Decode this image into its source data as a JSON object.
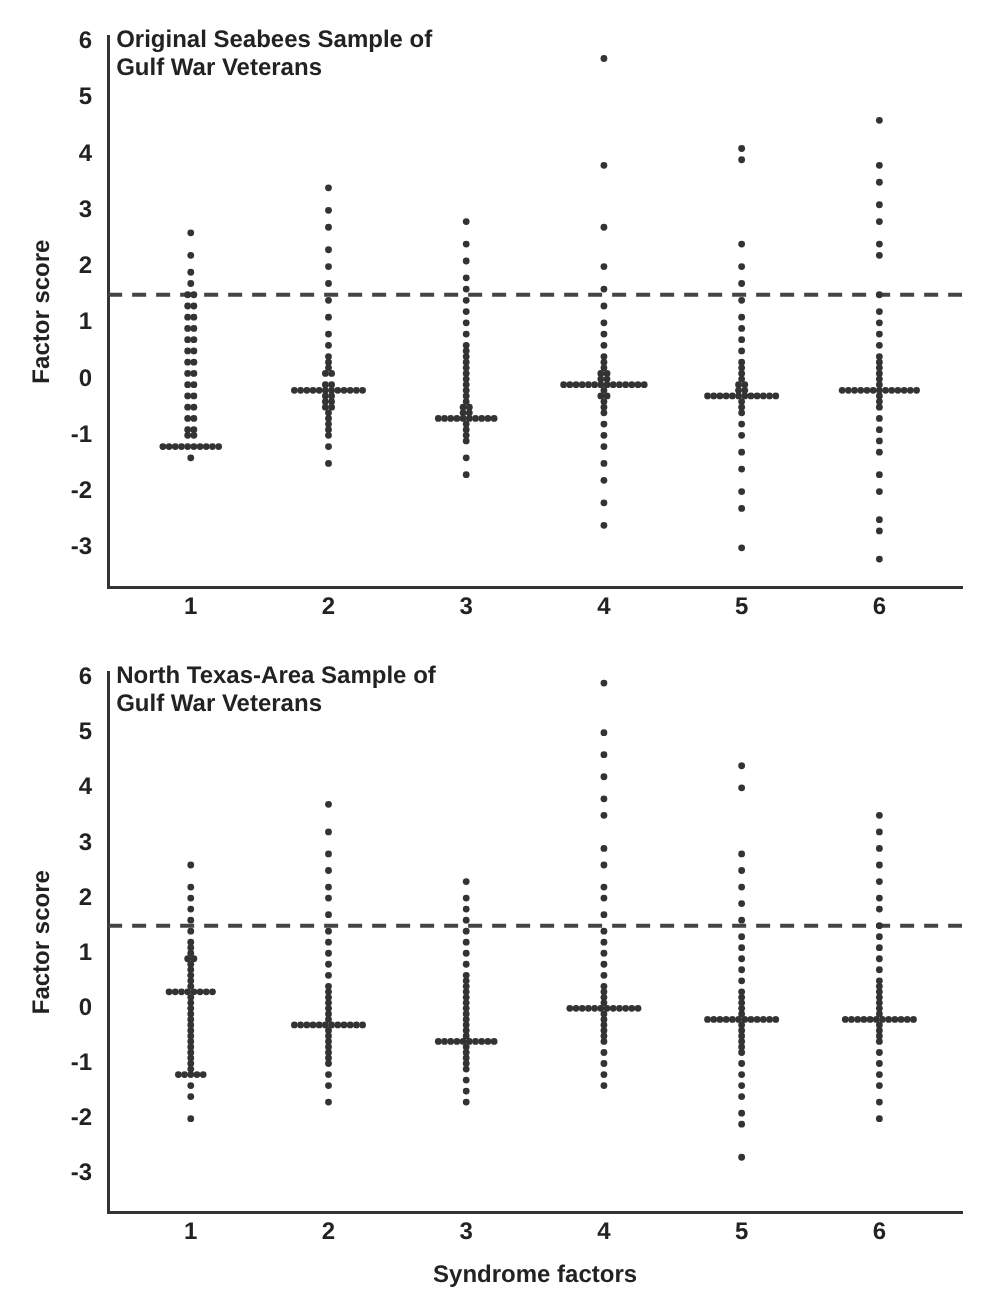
{
  "chart_data": [
    {
      "type": "scatter",
      "title": "Original Seabees Sample of Gulf War Veterans",
      "ylabel": "Factor score",
      "categories": [
        "1",
        "2",
        "3",
        "4",
        "5",
        "6"
      ],
      "ylim": [
        -3.7,
        6.1
      ],
      "yticks": [
        -3,
        -2,
        -1,
        0,
        1,
        2,
        3,
        4,
        5,
        6
      ],
      "grid": false,
      "legend": false,
      "marker": "circle",
      "ref_lines": [
        {
          "axis": "y",
          "value": 1.5,
          "line_style": "dashed",
          "color": "#444444"
        }
      ],
      "series": [
        {
          "color": "#333333",
          "x": [
            "1",
            "1",
            "1",
            "1",
            "1",
            "1",
            "1",
            "1",
            "1",
            "1",
            "1",
            "1",
            "1",
            "1",
            "1",
            "1",
            "1",
            "1",
            "1",
            "1",
            "1",
            "1",
            "1",
            "1",
            "1",
            "1",
            "1",
            "1",
            "1",
            "1",
            "1",
            "1",
            "1",
            "1",
            "1",
            "1",
            "1",
            "1",
            "1",
            "1",
            "1",
            "1",
            "1"
          ],
          "values": [
            2.6,
            2.2,
            1.9,
            1.7,
            1.5,
            1.5,
            1.3,
            1.3,
            1.1,
            1.1,
            0.9,
            0.9,
            0.7,
            0.7,
            0.5,
            0.5,
            0.3,
            0.3,
            0.1,
            0.1,
            -0.1,
            -0.1,
            -0.3,
            -0.3,
            -0.5,
            -0.5,
            -0.7,
            -0.7,
            -0.9,
            -0.9,
            -1.0,
            -1.0,
            -1.2,
            -1.2,
            -1.2,
            -1.2,
            -1.2,
            -1.2,
            -1.2,
            -1.2,
            -1.2,
            -1.2,
            -1.4
          ]
        },
        {
          "color": "#333333",
          "x": [
            "2",
            "2",
            "2",
            "2",
            "2",
            "2",
            "2",
            "2",
            "2",
            "2",
            "2",
            "2",
            "2",
            "2",
            "2",
            "2",
            "2",
            "2",
            "2",
            "2",
            "2",
            "2",
            "2",
            "2",
            "2",
            "2",
            "2",
            "2",
            "2",
            "2",
            "2",
            "2",
            "2",
            "2",
            "2",
            "2",
            "2",
            "2",
            "2",
            "2",
            "2",
            "2"
          ],
          "values": [
            3.4,
            3.0,
            2.7,
            2.3,
            2.0,
            1.7,
            1.4,
            1.1,
            0.8,
            0.6,
            0.4,
            0.3,
            0.2,
            0.1,
            0.1,
            -0.1,
            -0.1,
            -0.2,
            -0.2,
            -0.2,
            -0.2,
            -0.2,
            -0.2,
            -0.2,
            -0.2,
            -0.2,
            -0.2,
            -0.2,
            -0.2,
            -0.3,
            -0.3,
            -0.4,
            -0.4,
            -0.5,
            -0.5,
            -0.6,
            -0.7,
            -0.8,
            -0.9,
            -1.0,
            -1.2,
            -1.5
          ]
        },
        {
          "color": "#333333",
          "x": [
            "3",
            "3",
            "3",
            "3",
            "3",
            "3",
            "3",
            "3",
            "3",
            "3",
            "3",
            "3",
            "3",
            "3",
            "3",
            "3",
            "3",
            "3",
            "3",
            "3",
            "3",
            "3",
            "3",
            "3",
            "3",
            "3",
            "3",
            "3",
            "3",
            "3",
            "3",
            "3",
            "3",
            "3",
            "3",
            "3",
            "3",
            "3",
            "3",
            "3"
          ],
          "values": [
            2.8,
            2.4,
            2.1,
            1.8,
            1.6,
            1.4,
            1.2,
            1.0,
            0.8,
            0.6,
            0.5,
            0.4,
            0.3,
            0.2,
            0.1,
            0,
            -0.1,
            -0.2,
            -0.3,
            -0.4,
            -0.5,
            -0.5,
            -0.6,
            -0.6,
            -0.7,
            -0.7,
            -0.7,
            -0.7,
            -0.7,
            -0.7,
            -0.7,
            -0.7,
            -0.7,
            -0.7,
            -0.8,
            -0.9,
            -1.0,
            -1.1,
            -1.4,
            -1.7
          ]
        },
        {
          "color": "#333333",
          "x": [
            "4",
            "4",
            "4",
            "4",
            "4",
            "4",
            "4",
            "4",
            "4",
            "4",
            "4",
            "4",
            "4",
            "4",
            "4",
            "4",
            "4",
            "4",
            "4",
            "4",
            "4",
            "4",
            "4",
            "4",
            "4",
            "4",
            "4",
            "4",
            "4",
            "4",
            "4",
            "4",
            "4",
            "4",
            "4",
            "4",
            "4",
            "4",
            "4",
            "4",
            "4",
            "4",
            "4"
          ],
          "values": [
            5.7,
            3.8,
            2.7,
            2.0,
            1.6,
            1.3,
            1.0,
            0.8,
            0.6,
            0.4,
            0.3,
            0.2,
            0.1,
            0.1,
            0,
            0,
            -0.1,
            -0.1,
            -0.1,
            -0.1,
            -0.1,
            -0.1,
            -0.1,
            -0.1,
            -0.1,
            -0.1,
            -0.1,
            -0.1,
            -0.1,
            -0.1,
            -0.2,
            -0.3,
            -0.3,
            -0.4,
            -0.5,
            -0.6,
            -0.8,
            -1.0,
            -1.2,
            -1.5,
            -1.8,
            -2.2,
            -2.6
          ]
        },
        {
          "color": "#333333",
          "x": [
            "5",
            "5",
            "5",
            "5",
            "5",
            "5",
            "5",
            "5",
            "5",
            "5",
            "5",
            "5",
            "5",
            "5",
            "5",
            "5",
            "5",
            "5",
            "5",
            "5",
            "5",
            "5",
            "5",
            "5",
            "5",
            "5",
            "5",
            "5",
            "5",
            "5",
            "5",
            "5",
            "5",
            "5",
            "5",
            "5",
            "5",
            "5",
            "5",
            "5"
          ],
          "values": [
            4.1,
            3.9,
            2.4,
            2.0,
            1.7,
            1.4,
            1.1,
            0.9,
            0.7,
            0.5,
            0.3,
            0.2,
            0.1,
            0,
            -0.1,
            -0.1,
            -0.2,
            -0.2,
            -0.3,
            -0.3,
            -0.3,
            -0.3,
            -0.3,
            -0.3,
            -0.3,
            -0.3,
            -0.3,
            -0.3,
            -0.3,
            -0.3,
            -0.4,
            -0.5,
            -0.6,
            -0.8,
            -1.0,
            -1.3,
            -1.6,
            -2.0,
            -2.3,
            -3.0
          ]
        },
        {
          "color": "#333333",
          "x": [
            "6",
            "6",
            "6",
            "6",
            "6",
            "6",
            "6",
            "6",
            "6",
            "6",
            "6",
            "6",
            "6",
            "6",
            "6",
            "6",
            "6",
            "6",
            "6",
            "6",
            "6",
            "6",
            "6",
            "6",
            "6",
            "6",
            "6",
            "6",
            "6",
            "6",
            "6",
            "6",
            "6",
            "6",
            "6",
            "6",
            "6",
            "6",
            "6",
            "6",
            "6",
            "6",
            "6"
          ],
          "values": [
            4.6,
            3.8,
            3.5,
            3.1,
            2.8,
            2.4,
            2.2,
            1.5,
            1.2,
            1.0,
            0.8,
            0.6,
            0.4,
            0.3,
            0.2,
            0.1,
            0,
            -0.1,
            -0.2,
            -0.2,
            -0.2,
            -0.2,
            -0.2,
            -0.2,
            -0.2,
            -0.2,
            -0.2,
            -0.2,
            -0.2,
            -0.2,
            -0.2,
            -0.3,
            -0.4,
            -0.5,
            -0.7,
            -0.9,
            -1.1,
            -1.3,
            -1.7,
            -2.0,
            -2.5,
            -2.7,
            -3.2
          ]
        }
      ]
    },
    {
      "type": "scatter",
      "title": "North Texas-Area Sample of Gulf War Veterans",
      "xlabel": "Syndrome factors",
      "ylabel": "Factor score",
      "categories": [
        "1",
        "2",
        "3",
        "4",
        "5",
        "6"
      ],
      "ylim": [
        -3.7,
        6.1
      ],
      "yticks": [
        -3,
        -2,
        -1,
        0,
        1,
        2,
        3,
        4,
        5,
        6
      ],
      "grid": false,
      "legend": false,
      "marker": "circle",
      "ref_lines": [
        {
          "axis": "y",
          "value": 1.5,
          "line_style": "dashed",
          "color": "#444444"
        }
      ],
      "series": [
        {
          "color": "#333333",
          "x": [
            "1",
            "1",
            "1",
            "1",
            "1",
            "1",
            "1",
            "1",
            "1",
            "1",
            "1",
            "1",
            "1",
            "1",
            "1",
            "1",
            "1",
            "1",
            "1",
            "1",
            "1",
            "1",
            "1",
            "1",
            "1",
            "1",
            "1",
            "1",
            "1",
            "1",
            "1",
            "1",
            "1",
            "1",
            "1",
            "1",
            "1",
            "1",
            "1",
            "1",
            "1",
            "1",
            "1",
            "1",
            "1",
            "1"
          ],
          "values": [
            2.6,
            2.2,
            2.0,
            1.8,
            1.6,
            1.4,
            1.2,
            1.1,
            1.0,
            0.9,
            0.9,
            0.8,
            0.7,
            0.6,
            0.5,
            0.4,
            0.3,
            0.3,
            0.3,
            0.3,
            0.3,
            0.3,
            0.3,
            0.3,
            0.2,
            0.1,
            0,
            -0.1,
            -0.2,
            -0.3,
            -0.4,
            -0.5,
            -0.6,
            -0.7,
            -0.8,
            -0.9,
            -1.0,
            -1.1,
            -1.2,
            -1.2,
            -1.2,
            -1.2,
            -1.2,
            -1.4,
            -1.6,
            -2.0
          ]
        },
        {
          "color": "#333333",
          "x": [
            "2",
            "2",
            "2",
            "2",
            "2",
            "2",
            "2",
            "2",
            "2",
            "2",
            "2",
            "2",
            "2",
            "2",
            "2",
            "2",
            "2",
            "2",
            "2",
            "2",
            "2",
            "2",
            "2",
            "2",
            "2",
            "2",
            "2",
            "2",
            "2",
            "2",
            "2",
            "2",
            "2",
            "2",
            "2",
            "2",
            "2",
            "2",
            "2",
            "2",
            "2"
          ],
          "values": [
            3.7,
            3.2,
            2.8,
            2.5,
            2.2,
            2.0,
            1.7,
            1.4,
            1.2,
            1.0,
            0.8,
            0.6,
            0.4,
            0.3,
            0.2,
            0.1,
            0,
            -0.1,
            -0.2,
            -0.3,
            -0.3,
            -0.3,
            -0.3,
            -0.3,
            -0.3,
            -0.3,
            -0.3,
            -0.3,
            -0.3,
            -0.3,
            -0.3,
            -0.4,
            -0.5,
            -0.6,
            -0.7,
            -0.8,
            -0.9,
            -1.0,
            -1.2,
            -1.4,
            -1.7
          ]
        },
        {
          "color": "#333333",
          "x": [
            "3",
            "3",
            "3",
            "3",
            "3",
            "3",
            "3",
            "3",
            "3",
            "3",
            "3",
            "3",
            "3",
            "3",
            "3",
            "3",
            "3",
            "3",
            "3",
            "3",
            "3",
            "3",
            "3",
            "3",
            "3",
            "3",
            "3",
            "3",
            "3",
            "3",
            "3",
            "3",
            "3",
            "3",
            "3",
            "3",
            "3",
            "3"
          ],
          "values": [
            2.3,
            2.0,
            1.8,
            1.6,
            1.4,
            1.2,
            1.0,
            0.8,
            0.6,
            0.5,
            0.4,
            0.3,
            0.2,
            0.1,
            0,
            -0.1,
            -0.2,
            -0.3,
            -0.4,
            -0.5,
            -0.6,
            -0.6,
            -0.6,
            -0.6,
            -0.6,
            -0.6,
            -0.6,
            -0.6,
            -0.6,
            -0.6,
            -0.7,
            -0.8,
            -0.9,
            -1.0,
            -1.1,
            -1.3,
            -1.5,
            -1.7
          ]
        },
        {
          "color": "#333333",
          "x": [
            "4",
            "4",
            "4",
            "4",
            "4",
            "4",
            "4",
            "4",
            "4",
            "4",
            "4",
            "4",
            "4",
            "4",
            "4",
            "4",
            "4",
            "4",
            "4",
            "4",
            "4",
            "4",
            "4",
            "4",
            "4",
            "4",
            "4",
            "4",
            "4",
            "4",
            "4",
            "4",
            "4",
            "4",
            "4",
            "4",
            "4",
            "4",
            "4",
            "4",
            "4",
            "4"
          ],
          "values": [
            5.9,
            5.0,
            4.6,
            4.2,
            3.8,
            3.5,
            2.9,
            2.6,
            2.2,
            2.0,
            1.7,
            1.4,
            1.2,
            1.0,
            0.8,
            0.6,
            0.4,
            0.3,
            0.2,
            0.1,
            0,
            0,
            0,
            0,
            0,
            0,
            0,
            0,
            0,
            0,
            0,
            0,
            -0.1,
            -0.2,
            -0.3,
            -0.4,
            -0.5,
            -0.6,
            -0.8,
            -1.0,
            -1.2,
            -1.4
          ]
        },
        {
          "color": "#333333",
          "x": [
            "5",
            "5",
            "5",
            "5",
            "5",
            "5",
            "5",
            "5",
            "5",
            "5",
            "5",
            "5",
            "5",
            "5",
            "5",
            "5",
            "5",
            "5",
            "5",
            "5",
            "5",
            "5",
            "5",
            "5",
            "5",
            "5",
            "5",
            "5",
            "5",
            "5",
            "5",
            "5",
            "5",
            "5",
            "5",
            "5",
            "5",
            "5",
            "5",
            "5",
            "5",
            "5"
          ],
          "values": [
            4.4,
            4.0,
            2.8,
            2.5,
            2.2,
            1.9,
            1.6,
            1.3,
            1.1,
            0.9,
            0.7,
            0.5,
            0.3,
            0.2,
            0.1,
            0,
            -0.1,
            -0.2,
            -0.2,
            -0.2,
            -0.2,
            -0.2,
            -0.2,
            -0.2,
            -0.2,
            -0.2,
            -0.2,
            -0.2,
            -0.2,
            -0.3,
            -0.4,
            -0.5,
            -0.6,
            -0.7,
            -0.8,
            -1.0,
            -1.2,
            -1.4,
            -1.6,
            -1.9,
            -2.1,
            -2.7
          ]
        },
        {
          "color": "#333333",
          "x": [
            "6",
            "6",
            "6",
            "6",
            "6",
            "6",
            "6",
            "6",
            "6",
            "6",
            "6",
            "6",
            "6",
            "6",
            "6",
            "6",
            "6",
            "6",
            "6",
            "6",
            "6",
            "6",
            "6",
            "6",
            "6",
            "6",
            "6",
            "6",
            "6",
            "6",
            "6",
            "6",
            "6",
            "6",
            "6",
            "6",
            "6",
            "6",
            "6",
            "6",
            "6"
          ],
          "values": [
            3.5,
            3.2,
            2.9,
            2.6,
            2.3,
            2.0,
            1.8,
            1.5,
            1.3,
            1.1,
            0.9,
            0.7,
            0.5,
            0.4,
            0.3,
            0.2,
            0.1,
            0,
            -0.1,
            -0.2,
            -0.2,
            -0.2,
            -0.2,
            -0.2,
            -0.2,
            -0.2,
            -0.2,
            -0.2,
            -0.2,
            -0.2,
            -0.2,
            -0.3,
            -0.4,
            -0.5,
            -0.6,
            -0.8,
            -1.0,
            -1.2,
            -1.4,
            -1.7,
            -2.0
          ]
        }
      ]
    }
  ]
}
